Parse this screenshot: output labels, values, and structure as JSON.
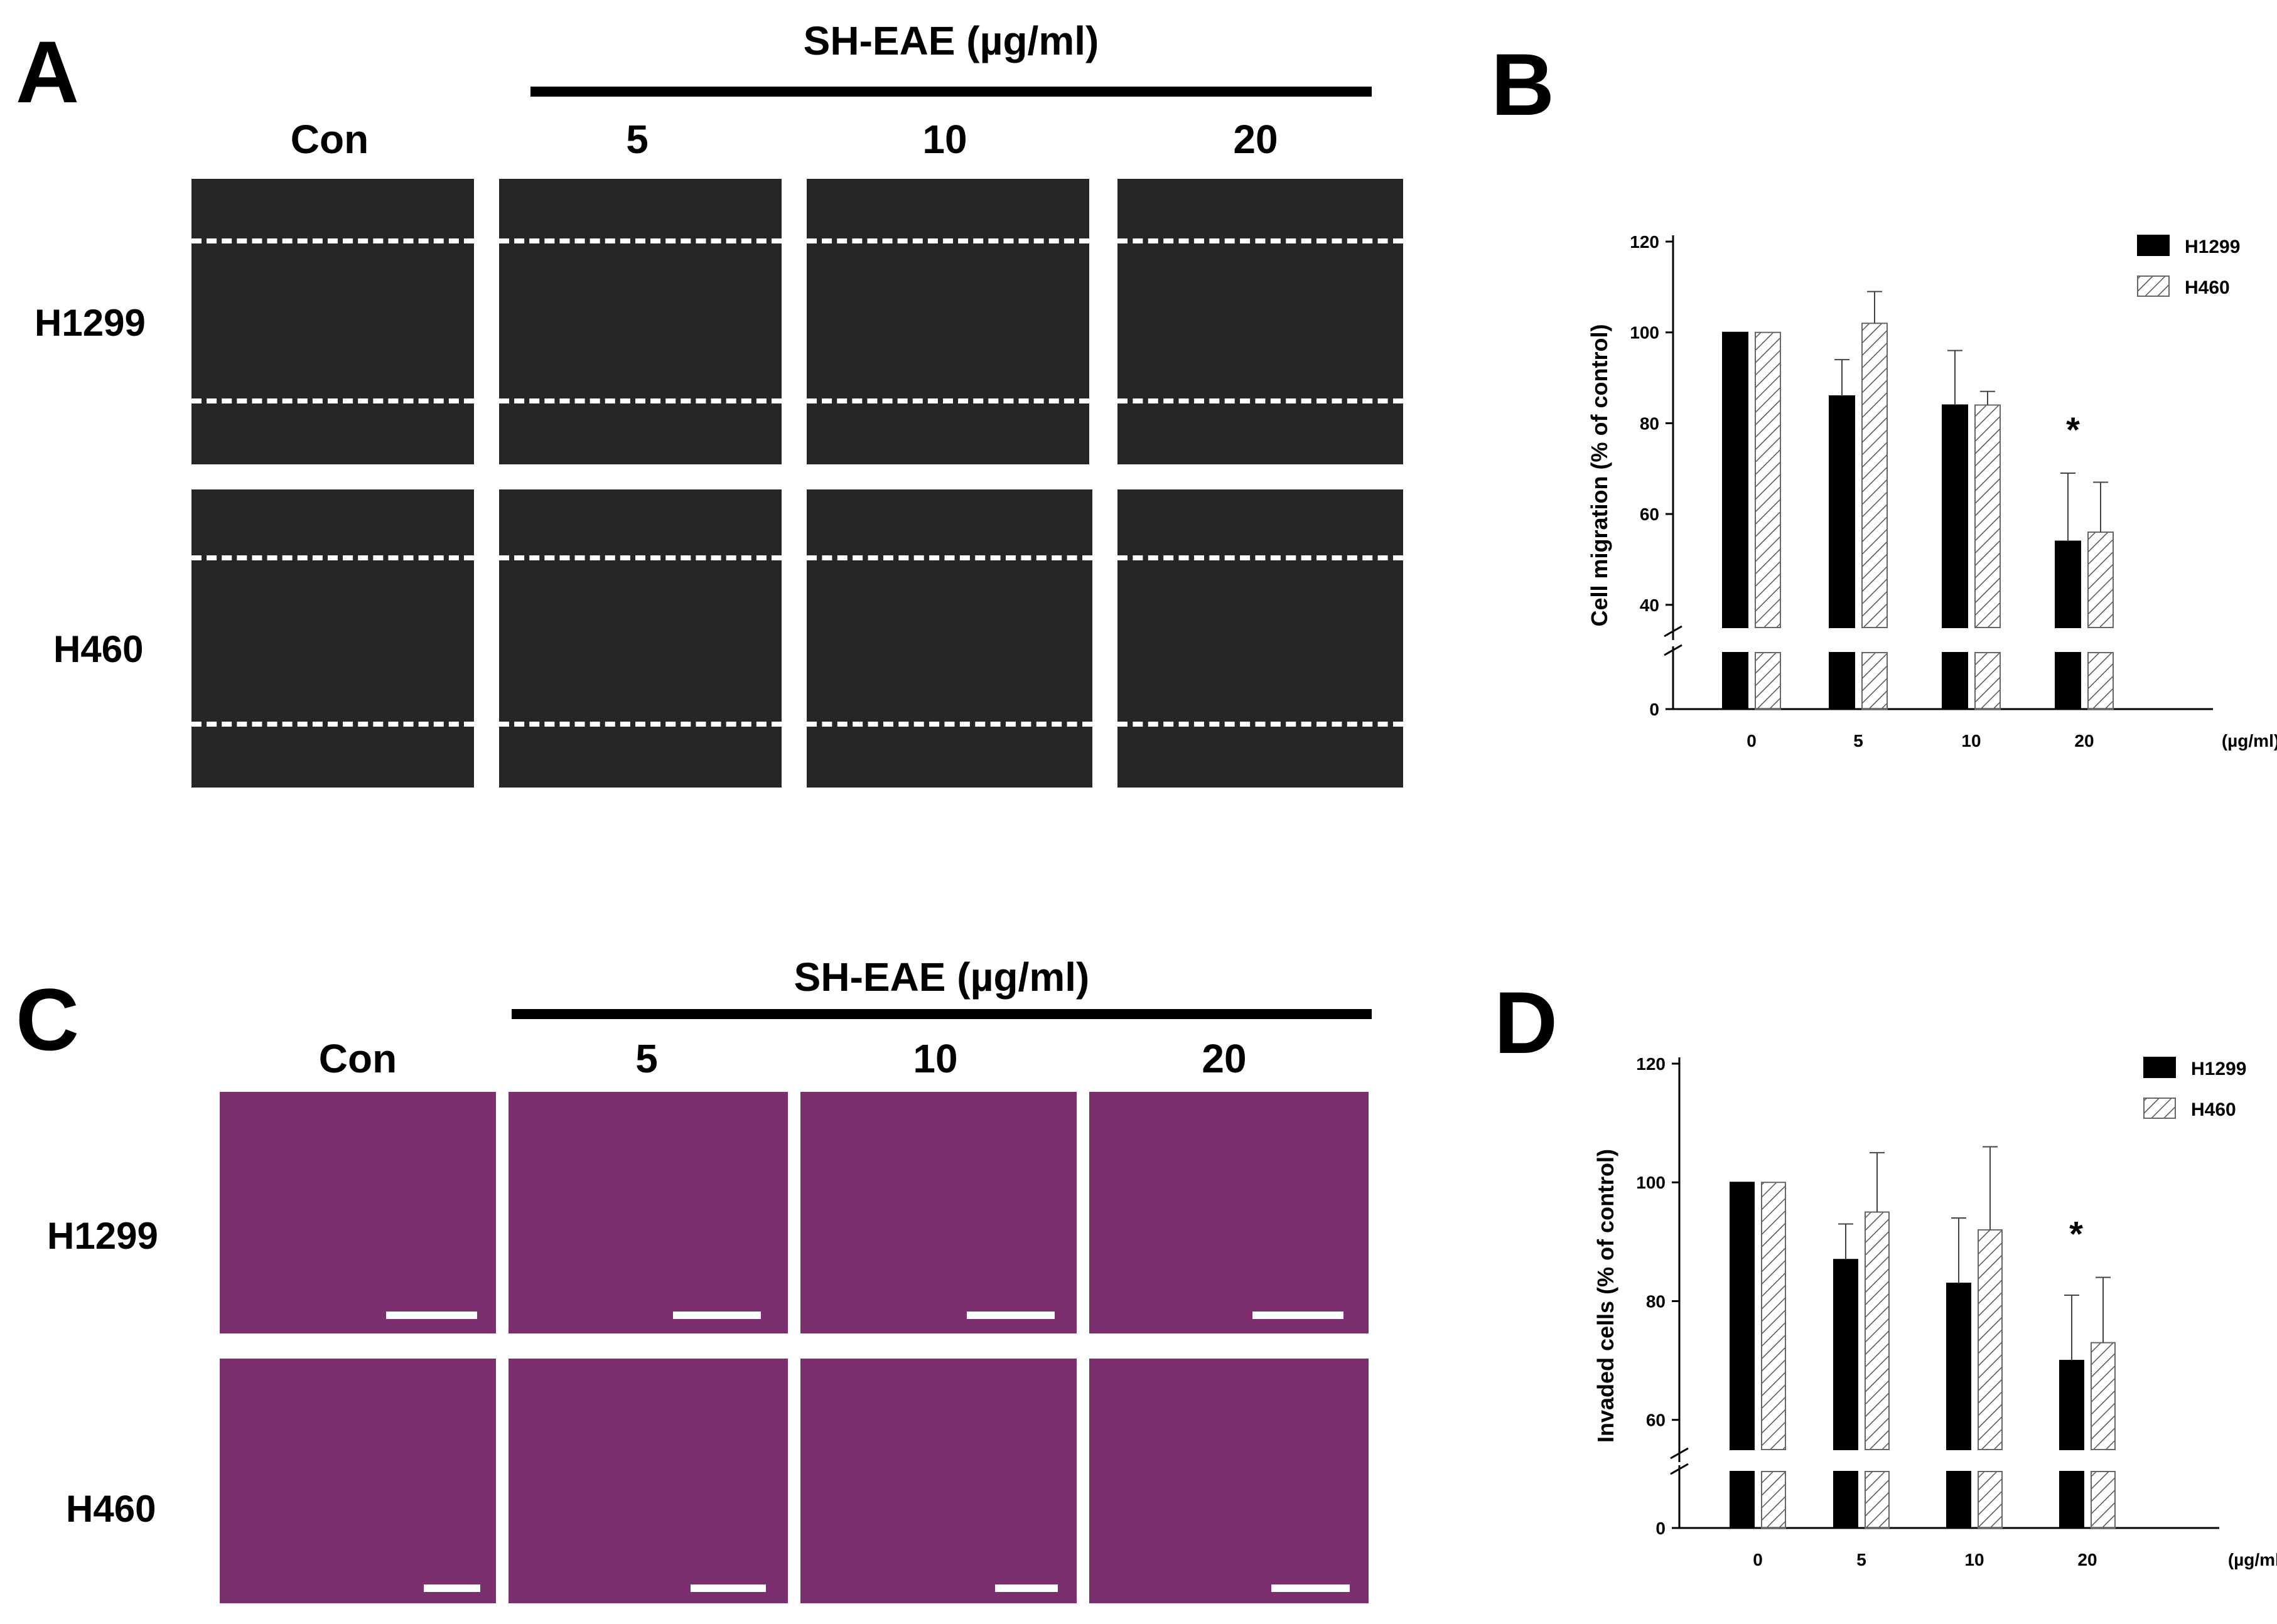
{
  "panels": {
    "A": {
      "letter": "A",
      "treatment_label": "SH-EAE (µg/ml)",
      "columns": [
        "Con",
        "5",
        "10",
        "20"
      ],
      "rows": [
        "H1299",
        "H460"
      ]
    },
    "B": {
      "letter": "B"
    },
    "C": {
      "letter": "C",
      "treatment_label": "SH-EAE (µg/ml)",
      "columns": [
        "Con",
        "5",
        "10",
        "20"
      ],
      "rows": [
        "H1299",
        "H460"
      ]
    },
    "D": {
      "letter": "D"
    }
  },
  "chart_data": [
    {
      "panel": "B",
      "type": "bar",
      "categories": [
        "0",
        "5",
        "10",
        "20"
      ],
      "x_unit": "(µg/ml)",
      "ylabel": "Cell migration (% of control)",
      "ylim": [
        0,
        120
      ],
      "axis_break": [
        0,
        35
      ],
      "yticks": [
        "0",
        "40",
        "60",
        "80",
        "100",
        "120"
      ],
      "series": [
        {
          "name": "H1299",
          "values": [
            100,
            86,
            84,
            54
          ],
          "errors": [
            0,
            8,
            12,
            15
          ]
        },
        {
          "name": "H460",
          "values": [
            100,
            102,
            84,
            56
          ],
          "errors": [
            0,
            7,
            3,
            11
          ]
        }
      ],
      "annotations": [
        {
          "category": "20",
          "text": "*"
        }
      ],
      "legend": "top-right"
    },
    {
      "panel": "D",
      "type": "bar",
      "categories": [
        "0",
        "5",
        "10",
        "20"
      ],
      "x_unit": "(µg/ml)",
      "ylabel": "Invaded cells (% of control)",
      "ylim": [
        0,
        120
      ],
      "axis_break": [
        0,
        55
      ],
      "yticks": [
        "0",
        "60",
        "80",
        "100",
        "120"
      ],
      "series": [
        {
          "name": "H1299",
          "values": [
            100,
            87,
            83,
            70
          ],
          "errors": [
            0,
            6,
            11,
            11
          ]
        },
        {
          "name": "H460",
          "values": [
            100,
            95,
            92,
            73
          ],
          "errors": [
            0,
            10,
            14,
            11
          ]
        }
      ],
      "annotations": [
        {
          "category": "20",
          "text": "*"
        }
      ],
      "legend": "top-right"
    }
  ],
  "colors": {
    "h1299_bar": "#000000",
    "h460_hatch": "#555555",
    "scratch_bg": "#262626",
    "stain_bg": "#7b2f6e"
  }
}
